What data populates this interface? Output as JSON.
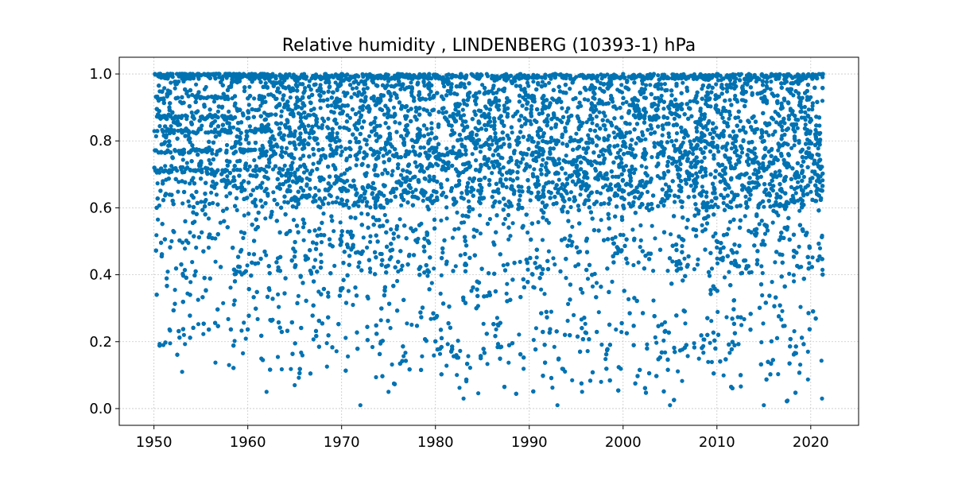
{
  "chart_data": {
    "type": "scatter",
    "title": "Relative humidity , LINDENBERG (10393-1)  hPa",
    "xlabel": "",
    "ylabel": "",
    "xlim": [
      1946.3,
      2025.1
    ],
    "ylim": [
      -0.05,
      1.05
    ],
    "x_ticks": [
      1950,
      1960,
      1970,
      1980,
      1990,
      2000,
      2010,
      2020
    ],
    "y_ticks": [
      0.0,
      0.2,
      0.4,
      0.6,
      0.8,
      1.0
    ],
    "x_tick_labels": [
      "1950",
      "1960",
      "1970",
      "1980",
      "1990",
      "2000",
      "2010",
      "2020"
    ],
    "y_tick_labels": [
      "0.0",
      "0.2",
      "0.4",
      "0.6",
      "0.8",
      "1.0"
    ],
    "x_range": [
      1950.0,
      2021.3
    ],
    "y_range": [
      0.0,
      1.0
    ],
    "grid": true,
    "legend": "none",
    "marker_color": "#0072b2",
    "series": [
      {
        "values_summary": "dense daily relative humidity observations spanning 1950 to 2021, values between about 0.0 and 1.0, mostly concentrated between 0.6 and 1.0",
        "sample_points": [
          {
            "x": 1950.1,
            "y": 1.0
          },
          {
            "x": 1950.5,
            "y": 0.92
          },
          {
            "x": 1951.0,
            "y": 0.19
          },
          {
            "x": 1953.0,
            "y": 0.11
          },
          {
            "x": 1955.0,
            "y": 0.93
          },
          {
            "x": 1958.0,
            "y": 0.13
          },
          {
            "x": 1962.0,
            "y": 0.05
          },
          {
            "x": 1965.0,
            "y": 0.07
          },
          {
            "x": 1970.0,
            "y": 1.0
          },
          {
            "x": 1972.0,
            "y": 0.01
          },
          {
            "x": 1975.0,
            "y": 0.05
          },
          {
            "x": 1980.0,
            "y": 0.99
          },
          {
            "x": 1983.0,
            "y": 0.03
          },
          {
            "x": 1990.0,
            "y": 0.99
          },
          {
            "x": 1993.0,
            "y": 0.01
          },
          {
            "x": 2000.0,
            "y": 1.0
          },
          {
            "x": 2005.0,
            "y": 0.01
          },
          {
            "x": 2010.0,
            "y": 1.0
          },
          {
            "x": 2015.0,
            "y": 0.01
          },
          {
            "x": 2021.2,
            "y": 0.03
          },
          {
            "x": 2021.3,
            "y": 1.0
          }
        ]
      }
    ]
  }
}
